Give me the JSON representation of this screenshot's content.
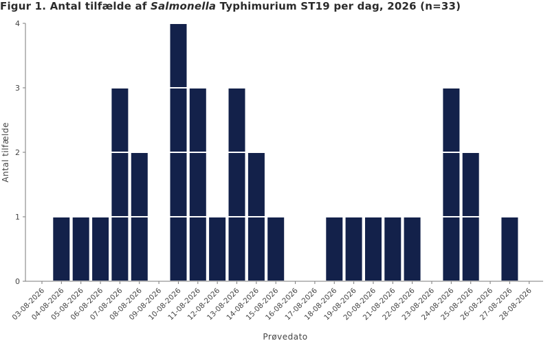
{
  "title": {
    "prefix": "Figur 1. Antal tilfælde af ",
    "organism": "Salmonella",
    "suffix": " Typhimurium ST19 per dag, 2026 (n=33)"
  },
  "colors": {
    "bar": "#13214a",
    "axis": "#7a7a7a",
    "text": "#444444"
  },
  "chart_data": {
    "type": "bar",
    "stacked_units": true,
    "xlabel": "Prøvedato",
    "ylabel": "Antal tilfælde",
    "ylim": [
      0,
      4
    ],
    "yticks": [
      0,
      1,
      2,
      3,
      4
    ],
    "grid": false,
    "categories": [
      "03-08-2026",
      "04-08-2026",
      "05-08-2026",
      "06-08-2026",
      "07-08-2026",
      "08-08-2026",
      "09-08-2026",
      "10-08-2026",
      "11-08-2026",
      "12-08-2026",
      "13-08-2026",
      "14-08-2026",
      "15-08-2026",
      "16-08-2026",
      "17-08-2026",
      "18-08-2026",
      "19-08-2026",
      "20-08-2026",
      "21-08-2026",
      "22-08-2026",
      "23-08-2026",
      "24-08-2026",
      "25-08-2026",
      "26-08-2026",
      "27-08-2026",
      "28-08-2026"
    ],
    "values": [
      0,
      1,
      1,
      1,
      3,
      2,
      0,
      4,
      3,
      1,
      3,
      2,
      1,
      0,
      0,
      1,
      1,
      1,
      1,
      1,
      0,
      3,
      2,
      0,
      1,
      0
    ]
  }
}
